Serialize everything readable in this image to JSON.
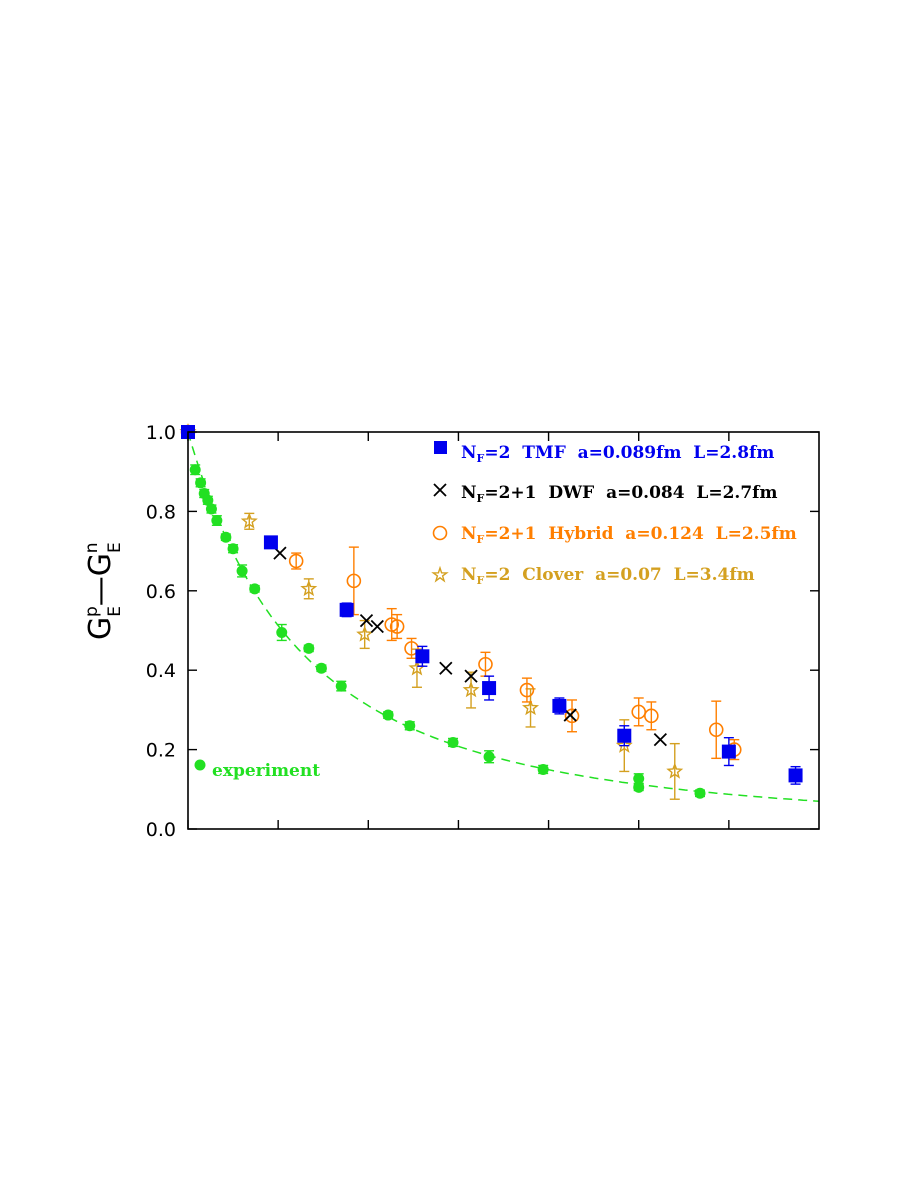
{
  "chart_data": {
    "type": "scatter",
    "title": "",
    "xlabel": "",
    "ylabel": {
      "base1": "G",
      "sub1": "E",
      "sup1": "p",
      "dash": "—",
      "base2": "G",
      "sub2": "E",
      "sup2": "n"
    },
    "xlim": [
      0,
      3.5
    ],
    "ylim": [
      0,
      1.0
    ],
    "x_ticks": [
      0,
      0.5,
      1.0,
      1.5,
      2.0,
      2.5,
      3.0
    ],
    "y_ticks": [
      0.0,
      0.2,
      0.4,
      0.6,
      0.8,
      1.0
    ],
    "y_tick_labels": [
      "0.0",
      "0.2",
      "0.4",
      "0.6",
      "0.8",
      "1.0"
    ],
    "grid": false,
    "legend_position": "top-right",
    "series": [
      {
        "name": "N_F=2 TMF a=0.089fm L=2.8fm",
        "legend_prefix": "N",
        "legend_sub": "F",
        "legend_rest": "=2  TMF  a=0.089fm  L=2.8fm",
        "color": "#0000ee",
        "marker": "filled-square",
        "points": [
          {
            "x": 0.0,
            "y": 1.0,
            "err": 0.0
          },
          {
            "x": 0.46,
            "y": 0.722,
            "err": 0.01
          },
          {
            "x": 0.88,
            "y": 0.552,
            "err": 0.017
          },
          {
            "x": 1.3,
            "y": 0.435,
            "err": 0.025
          },
          {
            "x": 1.67,
            "y": 0.355,
            "err": 0.03
          },
          {
            "x": 2.06,
            "y": 0.31,
            "err": 0.02
          },
          {
            "x": 2.42,
            "y": 0.235,
            "err": 0.025
          },
          {
            "x": 3.0,
            "y": 0.195,
            "err": 0.035
          },
          {
            "x": 3.37,
            "y": 0.135,
            "err": 0.022
          }
        ]
      },
      {
        "name": "N_F=2+1 DWF a=0.084 L=2.7fm",
        "legend_prefix": "N",
        "legend_sub": "F",
        "legend_rest": "=2+1  DWF  a=0.084  L=2.7fm",
        "color": "#000000",
        "marker": "cross",
        "points": [
          {
            "x": 0.0,
            "y": 1.0,
            "err": 0.0
          },
          {
            "x": 0.51,
            "y": 0.695,
            "err": 0.0
          },
          {
            "x": 0.99,
            "y": 0.525,
            "err": 0.0
          },
          {
            "x": 1.05,
            "y": 0.51,
            "err": 0.0
          },
          {
            "x": 1.43,
            "y": 0.405,
            "err": 0.0
          },
          {
            "x": 1.57,
            "y": 0.385,
            "err": 0.0
          },
          {
            "x": 2.12,
            "y": 0.287,
            "err": 0.0
          },
          {
            "x": 2.62,
            "y": 0.225,
            "err": 0.0
          }
        ]
      },
      {
        "name": "N_F=2+1 Hybrid a=0.124 L=2.5fm",
        "legend_prefix": "N",
        "legend_sub": "F",
        "legend_rest": "=2+1  Hybrid  a=0.124  L=2.5fm",
        "color": "#ff7f00",
        "marker": "open-circle",
        "points": [
          {
            "x": 0.0,
            "y": 1.0,
            "err": 0.0
          },
          {
            "x": 0.6,
            "y": 0.675,
            "err": 0.02
          },
          {
            "x": 0.92,
            "y": 0.625,
            "err": 0.085
          },
          {
            "x": 1.13,
            "y": 0.515,
            "err": 0.04
          },
          {
            "x": 1.16,
            "y": 0.51,
            "err": 0.03
          },
          {
            "x": 1.24,
            "y": 0.455,
            "err": 0.025
          },
          {
            "x": 1.65,
            "y": 0.415,
            "err": 0.03
          },
          {
            "x": 1.88,
            "y": 0.35,
            "err": 0.03
          },
          {
            "x": 2.13,
            "y": 0.285,
            "err": 0.04
          },
          {
            "x": 2.5,
            "y": 0.295,
            "err": 0.035
          },
          {
            "x": 2.57,
            "y": 0.285,
            "err": 0.035
          },
          {
            "x": 2.93,
            "y": 0.25,
            "err": 0.072
          },
          {
            "x": 3.03,
            "y": 0.2,
            "err": 0.025
          }
        ]
      },
      {
        "name": "N_F=2 Clover a=0.07 L=3.4fm",
        "legend_prefix": "N",
        "legend_sub": "F",
        "legend_rest": "=2  Clover  a=0.07  L=3.4fm",
        "color": "#d4a020",
        "marker": "open-star",
        "points": [
          {
            "x": 0.0,
            "y": 1.0,
            "err": 0.0
          },
          {
            "x": 0.34,
            "y": 0.775,
            "err": 0.02
          },
          {
            "x": 0.67,
            "y": 0.605,
            "err": 0.025
          },
          {
            "x": 0.98,
            "y": 0.49,
            "err": 0.035
          },
          {
            "x": 1.27,
            "y": 0.405,
            "err": 0.048
          },
          {
            "x": 1.57,
            "y": 0.35,
            "err": 0.045
          },
          {
            "x": 1.9,
            "y": 0.305,
            "err": 0.048
          },
          {
            "x": 2.42,
            "y": 0.21,
            "err": 0.065
          },
          {
            "x": 2.7,
            "y": 0.145,
            "err": 0.07
          }
        ]
      },
      {
        "name": "experiment",
        "color": "#22e022",
        "marker": "filled-circle",
        "points": [
          {
            "x": 0.0,
            "y": 1.0,
            "err": 0.0
          },
          {
            "x": 0.04,
            "y": 0.905,
            "err": 0.012
          },
          {
            "x": 0.07,
            "y": 0.872,
            "err": 0.01
          },
          {
            "x": 0.09,
            "y": 0.845,
            "err": 0.01
          },
          {
            "x": 0.11,
            "y": 0.828,
            "err": 0.01
          },
          {
            "x": 0.13,
            "y": 0.806,
            "err": 0.01
          },
          {
            "x": 0.16,
            "y": 0.777,
            "err": 0.012
          },
          {
            "x": 0.21,
            "y": 0.735,
            "err": 0.008
          },
          {
            "x": 0.25,
            "y": 0.706,
            "err": 0.01
          },
          {
            "x": 0.3,
            "y": 0.65,
            "err": 0.015
          },
          {
            "x": 0.37,
            "y": 0.605,
            "err": 0.008
          },
          {
            "x": 0.52,
            "y": 0.495,
            "err": 0.02
          },
          {
            "x": 0.67,
            "y": 0.455,
            "err": 0.008
          },
          {
            "x": 0.74,
            "y": 0.405,
            "err": 0.008
          },
          {
            "x": 0.85,
            "y": 0.36,
            "err": 0.012
          },
          {
            "x": 1.11,
            "y": 0.287,
            "err": 0.008
          },
          {
            "x": 1.23,
            "y": 0.26,
            "err": 0.01
          },
          {
            "x": 1.47,
            "y": 0.218,
            "err": 0.01
          },
          {
            "x": 1.67,
            "y": 0.182,
            "err": 0.015
          },
          {
            "x": 1.97,
            "y": 0.15,
            "err": 0.01
          },
          {
            "x": 2.5,
            "y": 0.127,
            "err": 0.012
          },
          {
            "x": 2.5,
            "y": 0.105,
            "err": 0.008
          },
          {
            "x": 2.84,
            "y": 0.09,
            "err": 0.008
          }
        ]
      }
    ],
    "fit_curve": {
      "color": "#22e022",
      "style": "dashed",
      "y_at_x0": 1.0,
      "y_at_x_end": 0.07
    },
    "annotation": {
      "text": "experiment",
      "color": "#22e022"
    }
  }
}
